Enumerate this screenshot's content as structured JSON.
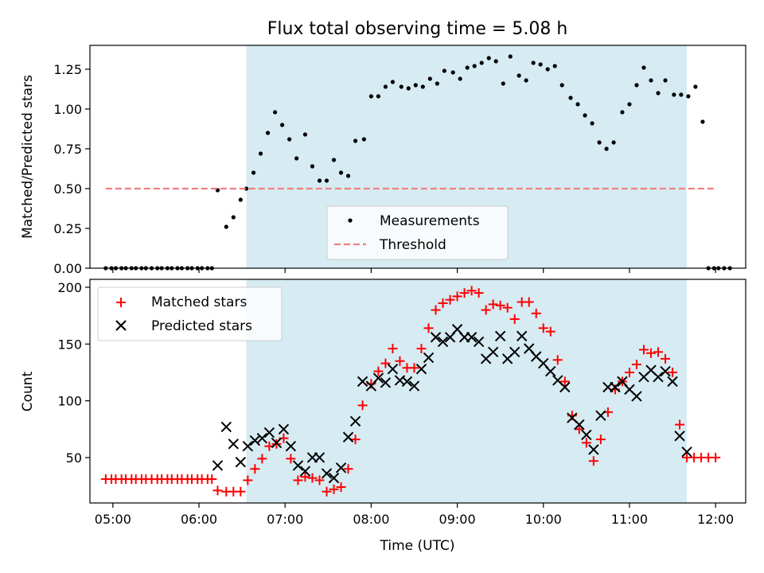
{
  "figure": {
    "title": "Flux total observing time = 5.08 h"
  },
  "shaded_band": {
    "x_start": "06:33",
    "x_end": "11:40",
    "color": "#add8e6"
  },
  "colors": {
    "measurement": "#000000",
    "threshold": "#f08080",
    "matched": "#ff0000",
    "predicted": "#000000",
    "band": "#add8e6"
  },
  "chart_data": [
    {
      "type": "scatter",
      "title": "Flux total observing time = 5.08 h",
      "xlabel": "",
      "ylabel": "Matched/Predicted stars",
      "xlim": [
        "04:44",
        "12:21"
      ],
      "ylim": [
        0,
        1.4
      ],
      "x_ticks": [
        "05:00",
        "06:00",
        "07:00",
        "08:00",
        "09:00",
        "10:00",
        "11:00",
        "12:00"
      ],
      "y_ticks": [
        "0.00",
        "0.25",
        "0.50",
        "0.75",
        "1.00",
        "1.25"
      ],
      "legend_position": "lower-center",
      "series": [
        {
          "name": "Measurements",
          "kind": "scatter",
          "marker": "dot",
          "points": [
            [
              "04:55",
              0
            ],
            [
              "04:59",
              0
            ],
            [
              "05:02",
              0
            ],
            [
              "05:06",
              0
            ],
            [
              "05:09",
              0
            ],
            [
              "05:13",
              0
            ],
            [
              "05:16",
              0
            ],
            [
              "05:20",
              0
            ],
            [
              "05:23",
              0
            ],
            [
              "05:27",
              0
            ],
            [
              "05:31",
              0
            ],
            [
              "05:34",
              0
            ],
            [
              "05:38",
              0
            ],
            [
              "05:41",
              0
            ],
            [
              "05:45",
              0
            ],
            [
              "05:48",
              0
            ],
            [
              "05:52",
              0
            ],
            [
              "05:55",
              0
            ],
            [
              "05:59",
              0
            ],
            [
              "06:02",
              0
            ],
            [
              "06:06",
              0
            ],
            [
              "06:09",
              0
            ],
            [
              "06:13",
              0.49
            ],
            [
              "06:19",
              0.26
            ],
            [
              "06:24",
              0.32
            ],
            [
              "06:29",
              0.43
            ],
            [
              "06:33",
              0.5
            ],
            [
              "06:38",
              0.6
            ],
            [
              "06:43",
              0.72
            ],
            [
              "06:48",
              0.85
            ],
            [
              "06:53",
              0.98
            ],
            [
              "06:58",
              0.9
            ],
            [
              "07:03",
              0.81
            ],
            [
              "07:08",
              0.69
            ],
            [
              "07:14",
              0.84
            ],
            [
              "07:19",
              0.64
            ],
            [
              "07:24",
              0.55
            ],
            [
              "07:29",
              0.55
            ],
            [
              "07:34",
              0.68
            ],
            [
              "07:39",
              0.6
            ],
            [
              "07:44",
              0.58
            ],
            [
              "07:49",
              0.8
            ],
            [
              "07:55",
              0.81
            ],
            [
              "08:00",
              1.08
            ],
            [
              "08:05",
              1.08
            ],
            [
              "08:10",
              1.14
            ],
            [
              "08:15",
              1.17
            ],
            [
              "08:21",
              1.14
            ],
            [
              "08:26",
              1.13
            ],
            [
              "08:31",
              1.15
            ],
            [
              "08:36",
              1.14
            ],
            [
              "08:41",
              1.19
            ],
            [
              "08:46",
              1.16
            ],
            [
              "08:51",
              1.24
            ],
            [
              "08:57",
              1.23
            ],
            [
              "09:02",
              1.19
            ],
            [
              "09:07",
              1.26
            ],
            [
              "09:12",
              1.27
            ],
            [
              "09:17",
              1.29
            ],
            [
              "09:22",
              1.32
            ],
            [
              "09:27",
              1.3
            ],
            [
              "09:32",
              1.16
            ],
            [
              "09:37",
              1.33
            ],
            [
              "09:43",
              1.21
            ],
            [
              "09:48",
              1.18
            ],
            [
              "09:53",
              1.29
            ],
            [
              "09:58",
              1.28
            ],
            [
              "10:03",
              1.25
            ],
            [
              "10:08",
              1.27
            ],
            [
              "10:13",
              1.15
            ],
            [
              "10:19",
              1.07
            ],
            [
              "10:24",
              1.03
            ],
            [
              "10:29",
              0.96
            ],
            [
              "10:34",
              0.91
            ],
            [
              "10:39",
              0.79
            ],
            [
              "10:44",
              0.75
            ],
            [
              "10:49",
              0.79
            ],
            [
              "10:55",
              0.98
            ],
            [
              "11:00",
              1.03
            ],
            [
              "11:05",
              1.15
            ],
            [
              "11:10",
              1.26
            ],
            [
              "11:15",
              1.18
            ],
            [
              "11:20",
              1.1
            ],
            [
              "11:25",
              1.18
            ],
            [
              "11:31",
              1.09
            ],
            [
              "11:36",
              1.09
            ],
            [
              "11:41",
              1.08
            ],
            [
              "11:46",
              1.14
            ],
            [
              "11:51",
              0.92
            ],
            [
              "11:55",
              0
            ],
            [
              "11:59",
              0
            ],
            [
              "12:02",
              0
            ],
            [
              "12:06",
              0
            ],
            [
              "12:10",
              0
            ]
          ]
        },
        {
          "name": "Threshold",
          "kind": "line",
          "dash": "dashed",
          "points": [
            [
              "04:55",
              0.5
            ],
            [
              "12:00",
              0.5
            ]
          ]
        }
      ]
    },
    {
      "type": "scatter",
      "title": "",
      "xlabel": "Time (UTC)",
      "ylabel": "Count",
      "xlim": [
        "04:44",
        "12:21"
      ],
      "ylim": [
        10,
        207
      ],
      "x_ticks": [
        "05:00",
        "06:00",
        "07:00",
        "08:00",
        "09:00",
        "10:00",
        "11:00",
        "12:00"
      ],
      "y_ticks": [
        "50",
        "100",
        "150",
        "200"
      ],
      "legend_position": "upper-left",
      "series": [
        {
          "name": "Matched stars",
          "marker": "plus",
          "points": [
            [
              "04:55",
              31
            ],
            [
              "04:59",
              31
            ],
            [
              "05:02",
              31
            ],
            [
              "05:06",
              31
            ],
            [
              "05:09",
              31
            ],
            [
              "05:13",
              31
            ],
            [
              "05:16",
              31
            ],
            [
              "05:20",
              31
            ],
            [
              "05:23",
              31
            ],
            [
              "05:27",
              31
            ],
            [
              "05:31",
              31
            ],
            [
              "05:34",
              31
            ],
            [
              "05:38",
              31
            ],
            [
              "05:41",
              31
            ],
            [
              "05:45",
              31
            ],
            [
              "05:48",
              31
            ],
            [
              "05:52",
              31
            ],
            [
              "05:55",
              31
            ],
            [
              "05:59",
              31
            ],
            [
              "06:02",
              31
            ],
            [
              "06:06",
              31
            ],
            [
              "06:09",
              31
            ],
            [
              "06:13",
              21
            ],
            [
              "06:19",
              20
            ],
            [
              "06:24",
              20
            ],
            [
              "06:29",
              20
            ],
            [
              "06:34",
              30
            ],
            [
              "06:39",
              40
            ],
            [
              "06:44",
              49
            ],
            [
              "06:49",
              60
            ],
            [
              "06:54",
              62
            ],
            [
              "06:59",
              67
            ],
            [
              "07:04",
              49
            ],
            [
              "07:09",
              30
            ],
            [
              "07:14",
              33
            ],
            [
              "07:19",
              32
            ],
            [
              "07:24",
              30
            ],
            [
              "07:29",
              20
            ],
            [
              "07:34",
              22
            ],
            [
              "07:39",
              24
            ],
            [
              "07:44",
              40
            ],
            [
              "07:49",
              66
            ],
            [
              "07:54",
              96
            ],
            [
              "08:00",
              115
            ],
            [
              "08:05",
              126
            ],
            [
              "08:10",
              133
            ],
            [
              "08:15",
              146
            ],
            [
              "08:20",
              135
            ],
            [
              "08:25",
              129
            ],
            [
              "08:30",
              129
            ],
            [
              "08:35",
              146
            ],
            [
              "08:40",
              164
            ],
            [
              "08:45",
              180
            ],
            [
              "08:50",
              186
            ],
            [
              "08:55",
              189
            ],
            [
              "09:00",
              192
            ],
            [
              "09:05",
              195
            ],
            [
              "09:10",
              197
            ],
            [
              "09:15",
              195
            ],
            [
              "09:20",
              180
            ],
            [
              "09:25",
              185
            ],
            [
              "09:30",
              184
            ],
            [
              "09:35",
              182
            ],
            [
              "09:40",
              172
            ],
            [
              "09:45",
              187
            ],
            [
              "09:50",
              187
            ],
            [
              "09:55",
              177
            ],
            [
              "10:00",
              164
            ],
            [
              "10:05",
              161
            ],
            [
              "10:10",
              136
            ],
            [
              "10:15",
              117
            ],
            [
              "10:20",
              87
            ],
            [
              "10:25",
              75
            ],
            [
              "10:30",
              63
            ],
            [
              "10:35",
              47
            ],
            [
              "10:40",
              66
            ],
            [
              "10:45",
              90
            ],
            [
              "10:50",
              110
            ],
            [
              "10:55",
              117
            ],
            [
              "11:00",
              125
            ],
            [
              "11:05",
              132
            ],
            [
              "11:10",
              145
            ],
            [
              "11:15",
              142
            ],
            [
              "11:20",
              143
            ],
            [
              "11:25",
              137
            ],
            [
              "11:30",
              125
            ],
            [
              "11:35",
              79
            ],
            [
              "11:40",
              50
            ],
            [
              "11:45",
              50
            ],
            [
              "11:50",
              50
            ],
            [
              "11:55",
              50
            ],
            [
              "12:00",
              50
            ]
          ]
        },
        {
          "name": "Predicted stars",
          "marker": "x",
          "points": [
            [
              "06:13",
              43
            ],
            [
              "06:19",
              77
            ],
            [
              "06:24",
              62
            ],
            [
              "06:29",
              46
            ],
            [
              "06:34",
              60
            ],
            [
              "06:39",
              65
            ],
            [
              "06:44",
              67
            ],
            [
              "06:49",
              72
            ],
            [
              "06:54",
              63
            ],
            [
              "06:59",
              75
            ],
            [
              "07:04",
              60
            ],
            [
              "07:09",
              43
            ],
            [
              "07:14",
              38
            ],
            [
              "07:19",
              50
            ],
            [
              "07:24",
              50
            ],
            [
              "07:29",
              36
            ],
            [
              "07:34",
              32
            ],
            [
              "07:39",
              41
            ],
            [
              "07:44",
              68
            ],
            [
              "07:49",
              82
            ],
            [
              "07:54",
              117
            ],
            [
              "08:00",
              113
            ],
            [
              "08:05",
              120
            ],
            [
              "08:10",
              116
            ],
            [
              "08:15",
              128
            ],
            [
              "08:20",
              118
            ],
            [
              "08:25",
              117
            ],
            [
              "08:30",
              113
            ],
            [
              "08:35",
              128
            ],
            [
              "08:40",
              138
            ],
            [
              "08:45",
              156
            ],
            [
              "08:50",
              152
            ],
            [
              "08:55",
              156
            ],
            [
              "09:00",
              163
            ],
            [
              "09:05",
              156
            ],
            [
              "09:10",
              156
            ],
            [
              "09:15",
              152
            ],
            [
              "09:20",
              137
            ],
            [
              "09:25",
              143
            ],
            [
              "09:30",
              157
            ],
            [
              "09:35",
              137
            ],
            [
              "09:40",
              143
            ],
            [
              "09:45",
              157
            ],
            [
              "09:50",
              146
            ],
            [
              "09:55",
              139
            ],
            [
              "10:00",
              133
            ],
            [
              "10:05",
              126
            ],
            [
              "10:10",
              118
            ],
            [
              "10:15",
              112
            ],
            [
              "10:20",
              85
            ],
            [
              "10:25",
              79
            ],
            [
              "10:30",
              70
            ],
            [
              "10:35",
              57
            ],
            [
              "10:40",
              87
            ],
            [
              "10:45",
              112
            ],
            [
              "10:50",
              112
            ],
            [
              "10:55",
              117
            ],
            [
              "11:00",
              110
            ],
            [
              "11:05",
              104
            ],
            [
              "11:10",
              121
            ],
            [
              "11:15",
              127
            ],
            [
              "11:20",
              121
            ],
            [
              "11:25",
              126
            ],
            [
              "11:30",
              117
            ],
            [
              "11:35",
              69
            ],
            [
              "11:40",
              55
            ]
          ]
        }
      ]
    }
  ]
}
